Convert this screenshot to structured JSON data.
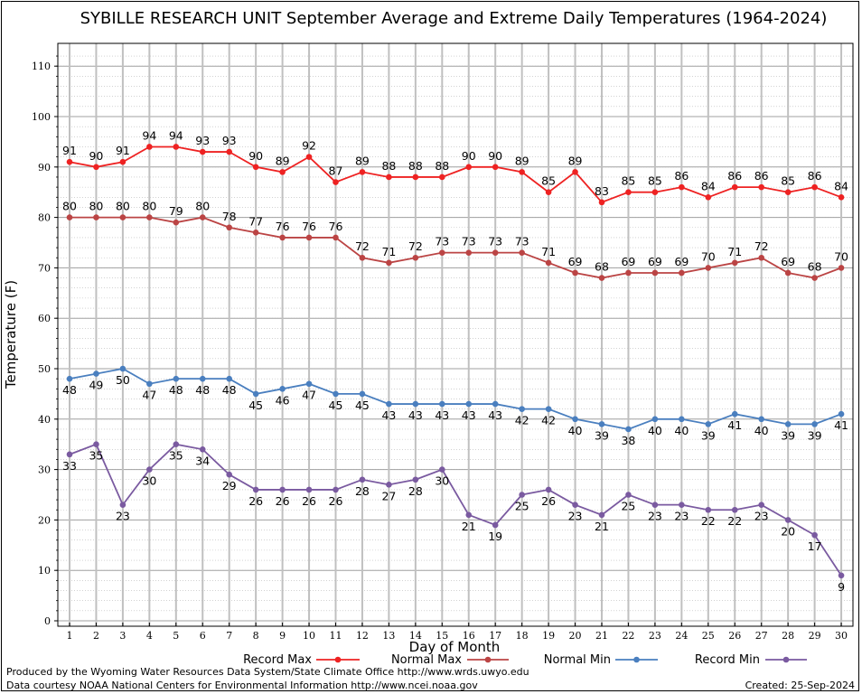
{
  "chart_data": {
    "type": "line",
    "title": "SYBILLE RESEARCH UNIT September Average and Extreme Daily Temperatures (1964-2024)",
    "xlabel": "Day of Month",
    "ylabel": "Temperature (F)",
    "ylim": [
      0,
      110
    ],
    "yticks": [
      "0",
      "10",
      "20",
      "30",
      "40",
      "50",
      "60",
      "70",
      "80",
      "90",
      "100",
      "110"
    ],
    "x": [
      "1",
      "2",
      "3",
      "4",
      "5",
      "6",
      "7",
      "8",
      "9",
      "10",
      "11",
      "12",
      "13",
      "14",
      "15",
      "16",
      "17",
      "18",
      "19",
      "20",
      "21",
      "22",
      "23",
      "24",
      "25",
      "26",
      "27",
      "28",
      "29",
      "30"
    ],
    "grid": true,
    "legend_position": "bottom",
    "series": [
      {
        "name": "Record Max",
        "color": "#ee2222",
        "label_pos": "above",
        "values": [
          91,
          90,
          91,
          94,
          94,
          93,
          93,
          90,
          89,
          92,
          87,
          89,
          88,
          88,
          88,
          90,
          90,
          89,
          85,
          89,
          83,
          85,
          85,
          86,
          84,
          86,
          86,
          85,
          86,
          84
        ]
      },
      {
        "name": "Normal Max",
        "color": "#bb4444",
        "label_pos": "above",
        "values": [
          80,
          80,
          80,
          80,
          79,
          80,
          78,
          77,
          76,
          76,
          76,
          72,
          71,
          72,
          73,
          73,
          73,
          73,
          71,
          69,
          68,
          69,
          69,
          69,
          70,
          71,
          72,
          69,
          68,
          70
        ]
      },
      {
        "name": "Normal Min",
        "color": "#4a7fbf",
        "label_pos": "below",
        "values": [
          48,
          49,
          50,
          47,
          48,
          48,
          48,
          45,
          46,
          47,
          45,
          45,
          43,
          43,
          43,
          43,
          43,
          42,
          42,
          40,
          39,
          38,
          40,
          40,
          39,
          41,
          40,
          39,
          39,
          41
        ]
      },
      {
        "name": "Record Min",
        "color": "#7a5aa0",
        "label_pos": "below",
        "values": [
          33,
          35,
          23,
          30,
          35,
          34,
          29,
          26,
          26,
          26,
          26,
          28,
          27,
          28,
          30,
          21,
          19,
          25,
          26,
          23,
          21,
          25,
          23,
          23,
          22,
          22,
          23,
          20,
          17,
          9
        ]
      }
    ]
  },
  "footer": {
    "line1": "Produced by the Wyoming Water Resources Data System/State Climate Office http://www.wrds.uwyo.edu",
    "line2": "Data courtesy NOAA National Centers for Environmental Information http://www.ncei.noaa.gov",
    "created": "Created:  25-Sep-2024"
  }
}
